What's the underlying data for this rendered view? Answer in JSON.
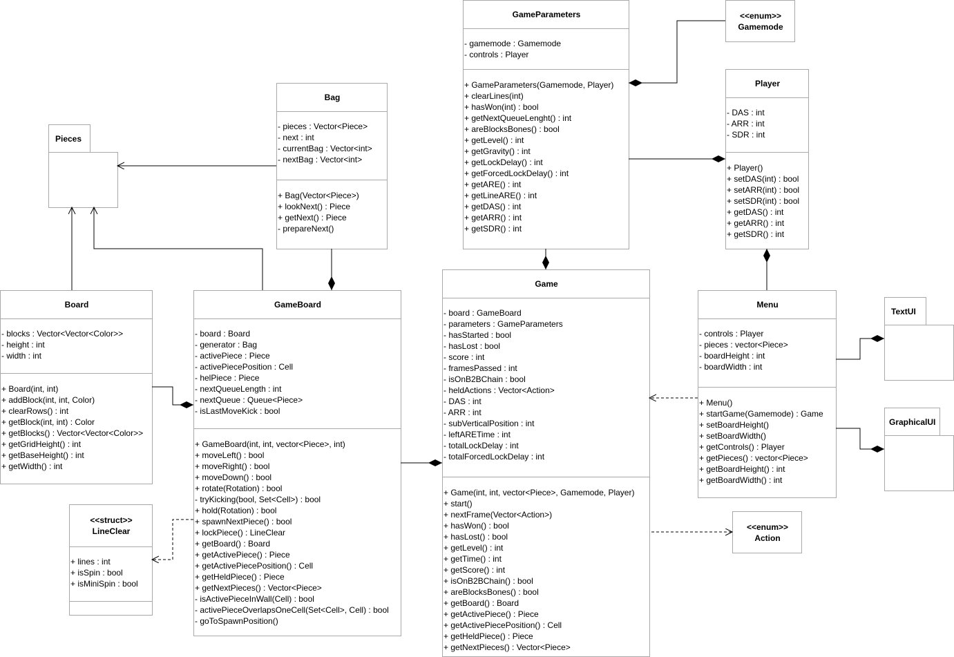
{
  "classes": [
    {
      "id": "game-parameters",
      "name": "GameParameters",
      "stereotype": "",
      "attributes": [
        "- gamemode : Gamemode",
        "- controls : Player"
      ],
      "methods": [
        "+ GameParameters(Gamemode, Player)",
        "+ clearLines(int)",
        "+ hasWon(int) : bool",
        "+ getNextQueueLenght() : int",
        "+ areBlocksBones() : bool",
        "+ getLevel() : int",
        "+ getGravity() : int",
        "+ getLockDelay() : int",
        "+ getForcedLockDelay() : int",
        "+ getARE() : int",
        "+ getLineARE() : int",
        "+ getDAS() : int",
        "+ getARR() : int",
        "+ getSDR() : int"
      ]
    },
    {
      "id": "gamemode",
      "name": "Gamemode",
      "stereotype": "<<enum>>",
      "attributes": [],
      "methods": []
    },
    {
      "id": "player",
      "name": "Player",
      "stereotype": "",
      "attributes": [
        "- DAS : int",
        "- ARR : int",
        "- SDR : int"
      ],
      "methods": [
        "+ Player()",
        "+ setDAS(int) : bool",
        "+ setARR(int) : bool",
        "+ setSDR(int) : bool",
        "+ getDAS() : int",
        "+ getARR() : int",
        "+ getSDR() : int"
      ]
    },
    {
      "id": "bag",
      "name": "Bag",
      "stereotype": "",
      "attributes": [
        "- pieces : Vector<Piece>",
        "- next : int",
        "- currentBag : Vector<int>",
        "- nextBag : Vector<int>"
      ],
      "methods": [
        "+ Bag(Vector<Piece>)",
        "+ lookNext() : Piece",
        "+ getNext() : Piece",
        "- prepareNext()"
      ]
    },
    {
      "id": "board",
      "name": "Board",
      "stereotype": "",
      "attributes": [
        "- blocks : Vector<Vector<Color>>",
        "- height : int",
        "- width : int"
      ],
      "methods": [
        "+ Board(int, int)",
        "+ addBlock(int, int, Color)",
        "+ clearRows() : int",
        "+ getBlock(int, int) : Color",
        "+ getBlocks() : Vector<Vector<Color>>",
        "+ getGridHeight() : int",
        "+ getBaseHeight() : int",
        "+ getWidth() : int"
      ]
    },
    {
      "id": "game-board",
      "name": "GameBoard",
      "stereotype": "",
      "attributes": [
        "- board : Board",
        "- generator : Bag",
        "- activePiece : Piece",
        "- activePiecePosition : Cell",
        "- helPiece : Piece",
        "- nextQueueLength : int",
        "- nextQueue : Queue<Piece>",
        "- isLastMoveKick : bool"
      ],
      "methods": [
        "+ GameBoard(int, int, vector<Piece>, int)",
        "+ moveLeft() : bool",
        "+ moveRight() : bool",
        "+ moveDown() : bool",
        "+ rotate(Rotation) : bool",
        "- tryKicking(bool, Set<Cell>) : bool",
        "+ hold(Rotation) : bool",
        "+ spawnNextPiece() : bool",
        "+ lockPiece() : LineClear",
        "+ getBoard() : Board",
        "+ getActivePiece() : Piece",
        "+ getActivePiecePosition() : Cell",
        "+ getHeldPiece() : Piece",
        "+ getNextPieces() : Vector<Piece>",
        "- isActivePieceInWall(Cell) : bool",
        "- activePieceOverlapsOneCell(Set<Cell>, Cell) : bool",
        "- goToSpawnPosition()"
      ]
    },
    {
      "id": "game",
      "name": "Game",
      "stereotype": "",
      "attributes": [
        "- board : GameBoard",
        "- parameters : GameParameters",
        "- hasStarted : bool",
        "- hasLost : bool",
        "- score : int",
        "- framesPassed : int",
        "- isOnB2BChain : bool",
        "- heldActions : Vector<Action>",
        "- DAS : int",
        "- ARR : int",
        "- subVerticalPosition : int",
        "- leftARETime : int",
        "- totalLockDelay : int",
        "- totalForcedLockDelay : int"
      ],
      "methods": [
        "+ Game(int, int, vector<Piece>, Gamemode, Player)",
        "+ start()",
        "+ nextFrame(Vector<Action>)",
        "+ hasWon() : bool",
        "+ hasLost() : bool",
        "+ getLevel() : int",
        "+ getTime() : int",
        "+ getScore() : int",
        "+ isOnB2BChain() : bool",
        "+ areBlocksBones() : bool",
        "+ getBoard() : Board",
        "+ getActivePiece() : Piece",
        "+ getActivePiecePosition() : Cell",
        "+ getHeldPiece() : Piece",
        "+ getNextPieces() : Vector<Piece>"
      ]
    },
    {
      "id": "menu",
      "name": "Menu",
      "stereotype": "",
      "attributes": [
        "- controls : Player",
        "- pieces : vector<Piece>",
        "- boardHeight : int",
        "- boardWidth : int"
      ],
      "methods": [
        "+ Menu()",
        "+ startGame(Gamemode) : Game",
        "+ setBoardHeight()",
        "+ setBoardWidth()",
        "+ getControls() : Player",
        "+ getPieces() : vector<Piece>",
        "+ getBoardHeight() : int",
        "+ getBoardWidth() : int"
      ]
    },
    {
      "id": "line-clear",
      "name": "LineClear",
      "stereotype": "<<struct>>",
      "attributes": [
        "+ lines : int",
        "+ isSpin : bool",
        "+ isMiniSpin : bool"
      ],
      "methods": []
    },
    {
      "id": "action",
      "name": "Action",
      "stereotype": "<<enum>>",
      "attributes": [],
      "methods": []
    }
  ],
  "packages": [
    {
      "id": "pieces",
      "name": "Pieces"
    },
    {
      "id": "text-ui",
      "name": "TextUI"
    },
    {
      "id": "graphical-ui",
      "name": "GraphicalUI"
    }
  ],
  "colors": {
    "border": "#a8a8a8",
    "line": "#000000"
  }
}
